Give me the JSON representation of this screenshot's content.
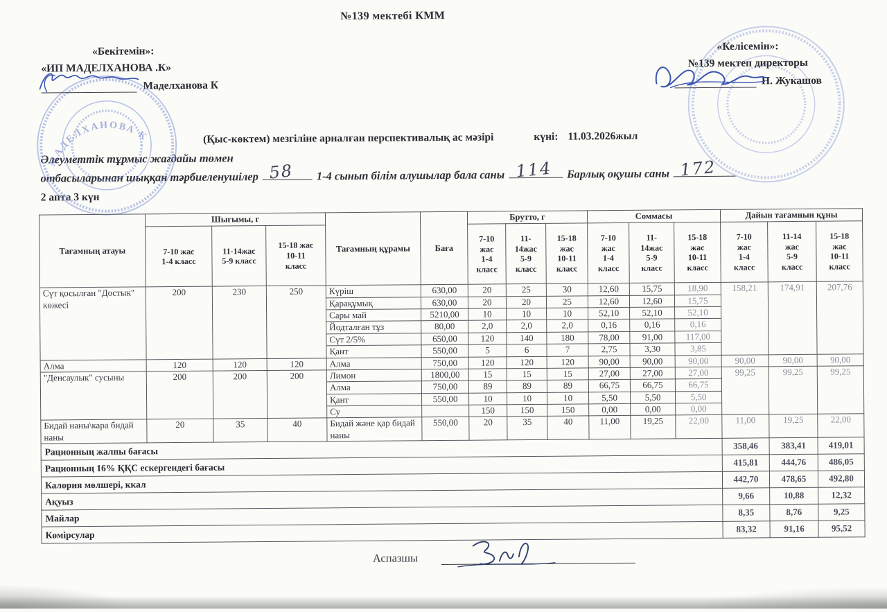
{
  "colors": {
    "ink_blue": "#3b56b0",
    "stamp_blue": "#7e92d6",
    "paper": "#fbfbf8"
  },
  "page": {
    "school_title": "№139 мектебі  КММ",
    "approve": {
      "label": "«Бекітемін»:",
      "org": "«ИП МАДЕЛХАНОВА .К»",
      "name": "Маделханова К"
    },
    "agree": {
      "label": "«Келісемін»:",
      "org": "№139 мектеп директоры",
      "name": "Н. Жукашов"
    },
    "menu_title": "(Қыс-көктем) мезгіліне арналған перспективалық  ас мәзірі",
    "date_label": "күні:",
    "date_value": "11.03.2026жыл",
    "social_line1": "Әлеуметтік  тұрмыс  жағдайы  төмен",
    "social_line2": {
      "part1": "отбасыларынан  шыққан тәрбиеленушілер",
      "part2": "1-4 сынып білім алушылар бала саны",
      "part3": "Барлық оқушы саны"
    },
    "counts": {
      "pupils": "58",
      "children": "114",
      "total": "172"
    },
    "week_day": "2 апта 3 күн",
    "cook_label": "Аспазшы",
    "stamp_left_text": "МАДЕЛХАНОВА К"
  },
  "table": {
    "columns": {
      "name": "Тағамның атауы",
      "out_group": "Шығымы, г",
      "composition": "Тағамның құрамы",
      "price": "Баға",
      "brutto_group": "Брутто, г",
      "sum_group": "Соммасы",
      "cost_group": "Дайын тағамнын құны",
      "out_subs": [
        "7-10 жас\n1-4 класс",
        "11-14жас\n5-9 класс",
        "15-18 жас\n10-11\nкласс"
      ],
      "age_subs": [
        "7-10\nжас\n1-4\nкласс",
        "11-\n14жас\n5-9\nкласс",
        "15-18\nжас\n10-11\nкласс"
      ],
      "cost_subs": [
        "7-10\nжас\n1-4\nкласс",
        "11-14\nжас\n5-9\nкласс",
        "15-18\nжас\n10-11\nкласс"
      ]
    },
    "dishes": [
      {
        "name": "Сүт қосылған \"Достык\" көжесі",
        "out": [
          "200",
          "230",
          "250"
        ],
        "cost": [
          "158,21",
          "174,91",
          "207,76"
        ],
        "ingredients": [
          {
            "name": "Күріш",
            "price": "630,00",
            "brutto": [
              "20",
              "25",
              "30"
            ],
            "sum": [
              "12,60",
              "15,75",
              "18,90"
            ]
          },
          {
            "name": "Қарақұмық",
            "price": "630,00",
            "brutto": [
              "20",
              "20",
              "25"
            ],
            "sum": [
              "12,60",
              "12,60",
              "15,75"
            ]
          },
          {
            "name": "Сары май",
            "price": "5210,00",
            "brutto": [
              "10",
              "10",
              "10"
            ],
            "sum": [
              "52,10",
              "52,10",
              "52,10"
            ]
          },
          {
            "name": "Йодталған тұз",
            "price": "80,00",
            "brutto": [
              "2,0",
              "2,0",
              "2,0"
            ],
            "sum": [
              "0,16",
              "0,16",
              "0,16"
            ]
          },
          {
            "name": "Сүт 2/5%",
            "price": "650,00",
            "brutto": [
              "120",
              "140",
              "180"
            ],
            "sum": [
              "78,00",
              "91,00",
              "117,00"
            ]
          },
          {
            "name": "Қант",
            "price": "550,00",
            "brutto": [
              "5",
              "6",
              "7"
            ],
            "sum": [
              "2,75",
              "3,30",
              "3,85"
            ]
          }
        ]
      },
      {
        "name": "Алма",
        "out": [
          "120",
          "120",
          "120"
        ],
        "cost": [
          "90,00",
          "90,00",
          "90,00"
        ],
        "ingredients": [
          {
            "name": "Алма",
            "price": "750,00",
            "brutto": [
              "120",
              "120",
              "120"
            ],
            "sum": [
              "90,00",
              "90,00",
              "90,00"
            ]
          }
        ]
      },
      {
        "name": "\"Денсаулык\" сусыны",
        "out": [
          "200",
          "200",
          "200"
        ],
        "cost": [
          "99,25",
          "99,25",
          "99,25"
        ],
        "ingredients": [
          {
            "name": "Лимон",
            "price": "1800,00",
            "brutto": [
              "15",
              "15",
              "15"
            ],
            "sum": [
              "27,00",
              "27,00",
              "27,00"
            ]
          },
          {
            "name": "Алма",
            "price": "750,00",
            "brutto": [
              "89",
              "89",
              "89"
            ],
            "sum": [
              "66,75",
              "66,75",
              "66,75"
            ]
          },
          {
            "name": "Қант",
            "price": "550,00",
            "brutto": [
              "10",
              "10",
              "10"
            ],
            "sum": [
              "5,50",
              "5,50",
              "5,50"
            ]
          },
          {
            "name": "Су",
            "price": "",
            "brutto": [
              "150",
              "150",
              "150"
            ],
            "sum": [
              "0,00",
              "0,00",
              "0,00"
            ]
          }
        ]
      },
      {
        "name": "Бидай наны\\кара бидай наны",
        "out": [
          "20",
          "35",
          "40"
        ],
        "cost": [
          "11,00",
          "19,25",
          "22,00"
        ],
        "ingredients": [
          {
            "name": "Бидай және қар бидай наны",
            "price": "550,00",
            "brutto": [
              "20",
              "35",
              "40"
            ],
            "sum": [
              "11,00",
              "19,25",
              "22,00"
            ]
          }
        ]
      }
    ],
    "summary": [
      {
        "label": "Рационның жалпы бағасы",
        "values": [
          "358,46",
          "383,41",
          "419,01"
        ]
      },
      {
        "label": "Рационның 16% ҚҚС ескергендегі бағасы",
        "values": [
          "415,81",
          "444,76",
          "486,05"
        ]
      },
      {
        "label": "Калория мөлшері, ккал",
        "values": [
          "442,70",
          "478,65",
          "492,80"
        ]
      },
      {
        "label": "Ақуыз",
        "values": [
          "9,66",
          "10,88",
          "12,32"
        ]
      },
      {
        "label": "Майлар",
        "values": [
          "8,35",
          "8,76",
          "9,25"
        ]
      },
      {
        "label": "Көмірсулар",
        "values": [
          "83,32",
          "91,16",
          "95,52"
        ]
      }
    ]
  }
}
